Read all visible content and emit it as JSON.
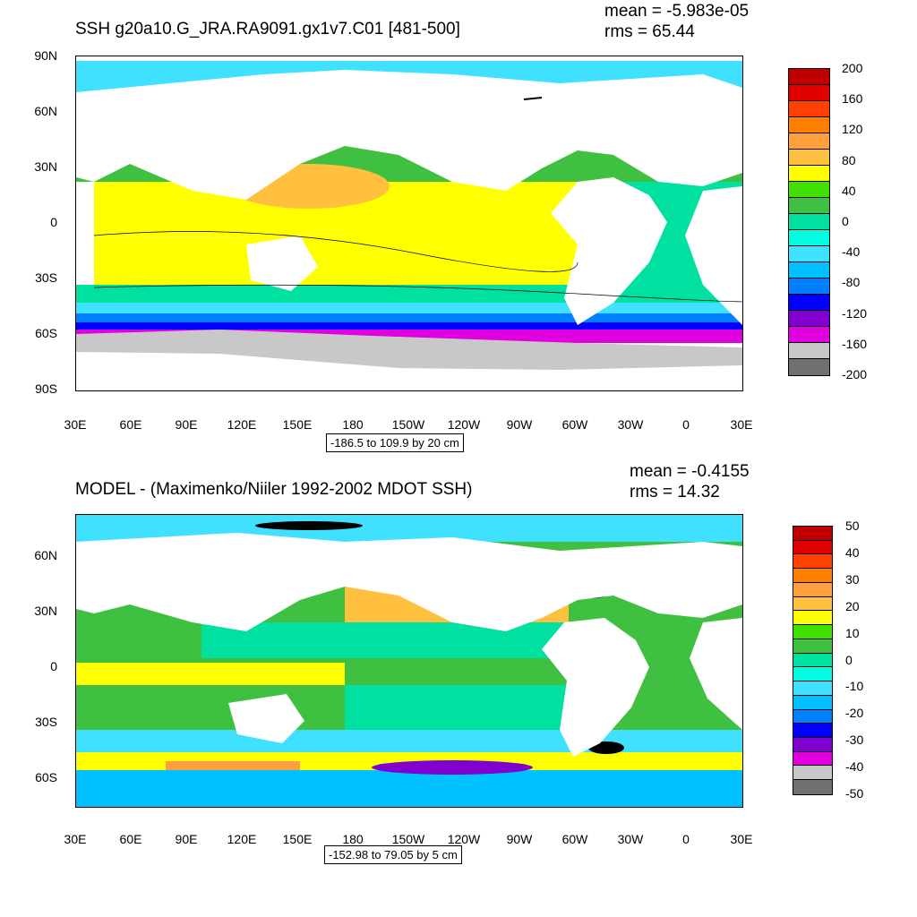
{
  "top": {
    "title": "SSH g20a10.G_JRA.RA9091.gx1v7.C01 [481-500]",
    "mean": "mean = -5.983e-05",
    "rms": "rms = 65.44",
    "range": "-186.5 to 109.9 by 20 cm",
    "yticks": [
      "90N",
      "60N",
      "30N",
      "0",
      "30S",
      "60S",
      "90S"
    ],
    "xticks": [
      "30E",
      "60E",
      "90E",
      "120E",
      "150E",
      "180",
      "150W",
      "120W",
      "90W",
      "60W",
      "30W",
      "0",
      "30E"
    ],
    "colorbar_labels": [
      "200",
      "160",
      "120",
      "80",
      "40",
      "0",
      "-40",
      "-80",
      "-120",
      "-160",
      "-200"
    ],
    "colorbar_colors": [
      "#c00000",
      "#e00000",
      "#ff4000",
      "#ff8000",
      "#ffa040",
      "#ffc040",
      "#ffff00",
      "#40e000",
      "#40c040",
      "#00e0a0",
      "#00ffe0",
      "#40e0ff",
      "#00c0ff",
      "#0080ff",
      "#0000ff",
      "#8000d0",
      "#e000e0",
      "#c8c8c8",
      "#707070"
    ]
  },
  "bottom": {
    "title": "MODEL - (Maximenko/Niiler 1992-2002 MDOT SSH)",
    "mean": "mean = -0.4155",
    "rms": "rms = 14.32",
    "range": "-152.98 to 79.05 by 5 cm",
    "yticks": [
      "60N",
      "30N",
      "0",
      "30S",
      "60S"
    ],
    "xticks": [
      "30E",
      "60E",
      "90E",
      "120E",
      "150E",
      "180",
      "150W",
      "120W",
      "90W",
      "60W",
      "30W",
      "0",
      "30E"
    ],
    "colorbar_labels": [
      "50",
      "40",
      "30",
      "20",
      "10",
      "0",
      "-10",
      "-20",
      "-30",
      "-40",
      "-50"
    ],
    "colorbar_colors": [
      "#c00000",
      "#e00000",
      "#ff4000",
      "#ff8000",
      "#ffa040",
      "#ffc040",
      "#ffff00",
      "#40e000",
      "#40c040",
      "#00e0a0",
      "#00ffe0",
      "#40e0ff",
      "#00c0ff",
      "#0080ff",
      "#0000ff",
      "#8000d0",
      "#e000e0",
      "#c8c8c8",
      "#707070"
    ]
  }
}
